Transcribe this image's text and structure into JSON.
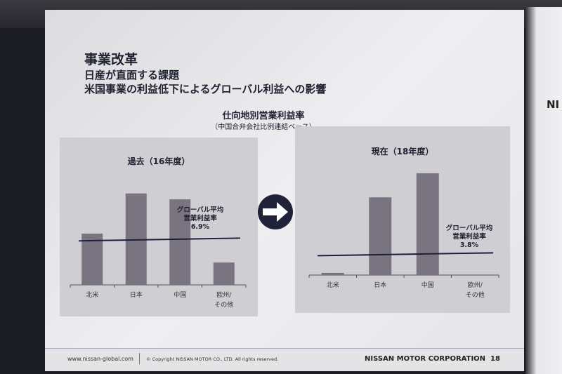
{
  "slide": {
    "title": "事業改革",
    "subtitle1": "日産が直面する課題",
    "subtitle2": "米国事業の利益低下によるグローバル利益への影響",
    "chart_heading": "仕向地別営業利益率",
    "chart_subheading": "（中国合弁会社比例連結ベース）"
  },
  "background_sign": "NI",
  "arrow_icon": "arrow-right-icon",
  "colors": {
    "bar": "#7a7480",
    "line": "#1a1f3a",
    "panel": "#cfcfd3"
  },
  "chart_data": [
    {
      "type": "bar",
      "title": "過去（16年度）",
      "categories": [
        "北米",
        "日本",
        "中国",
        "欧州/\nその他"
      ],
      "category_lines": [
        [
          "北米"
        ],
        [
          "日本"
        ],
        [
          "中国"
        ],
        [
          "欧州/",
          "その他"
        ]
      ],
      "values": [
        7.8,
        13.9,
        13.0,
        3.4
      ],
      "reference_line": {
        "value": 6.9,
        "label_lines": [
          "グローバル平均",
          "営業利益率",
          "6.9%"
        ]
      },
      "ylim": [
        0,
        16
      ],
      "grid": false
    },
    {
      "type": "bar",
      "title": "現在（18年度）",
      "categories": [
        "北米",
        "日本",
        "中国",
        "欧州/\nその他"
      ],
      "category_lines": [
        [
          "北米"
        ],
        [
          "日本"
        ],
        [
          "中国"
        ],
        [
          "欧州/",
          "その他"
        ]
      ],
      "values": [
        0.4,
        14.2,
        18.6,
        0
      ],
      "reference_line": {
        "value": 3.8,
        "label_lines": [
          "グローバル平均",
          "営業利益率",
          "3.8%"
        ]
      },
      "ylim": [
        0,
        20
      ],
      "grid": false
    }
  ],
  "footer": {
    "url": "www.nissan-global.com",
    "copyright": "© Copyright NISSAN MOTOR CO., LTD. All rights reserved.",
    "company": "NISSAN MOTOR CORPORATION",
    "page": "18"
  }
}
